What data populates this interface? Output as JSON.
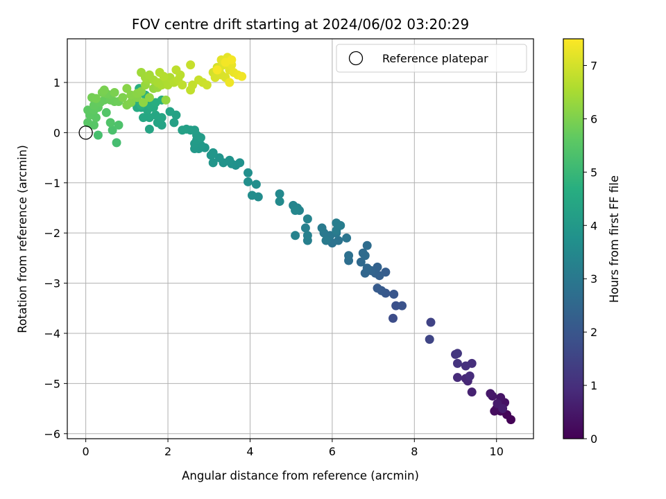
{
  "chart_data": {
    "type": "scatter",
    "title": "FOV centre drift starting at 2024/06/02 03:20:29",
    "xlabel": "Angular distance from reference (arcmin)",
    "ylabel": "Rotation from reference (arcmin)",
    "xlim": [
      -0.45,
      10.9
    ],
    "ylim": [
      -6.1,
      1.87
    ],
    "xticks": [
      0,
      2,
      4,
      6,
      8,
      10
    ],
    "yticks": [
      -6,
      -5,
      -4,
      -3,
      -2,
      -1,
      0,
      1
    ],
    "grid": true,
    "colormap": "viridis",
    "colorbar": {
      "label": "Hours from first FF file",
      "range": [
        0,
        7.5
      ],
      "ticks": [
        0,
        1,
        2,
        3,
        4,
        5,
        6,
        7
      ]
    },
    "legend": {
      "position": "top-right",
      "entries": [
        {
          "label": "Reference platepar",
          "marker": "open-circle"
        }
      ]
    },
    "reference_point": {
      "x": 0,
      "y": 0
    },
    "points": [
      [
        10.35,
        -5.72,
        0.05
      ],
      [
        10.25,
        -5.62,
        0.1
      ],
      [
        10.1,
        -5.55,
        0.15
      ],
      [
        10.0,
        -5.5,
        0.2
      ],
      [
        9.95,
        -5.55,
        0.25
      ],
      [
        10.05,
        -5.45,
        0.3
      ],
      [
        10.2,
        -5.38,
        0.35
      ],
      [
        10.1,
        -5.28,
        0.4
      ],
      [
        9.9,
        -5.25,
        0.45
      ],
      [
        9.85,
        -5.2,
        0.5
      ],
      [
        10.02,
        -5.4,
        0.55
      ],
      [
        10.15,
        -5.5,
        0.6
      ],
      [
        9.4,
        -5.17,
        0.7
      ],
      [
        9.3,
        -4.95,
        0.8
      ],
      [
        9.25,
        -4.9,
        0.85
      ],
      [
        9.05,
        -4.88,
        0.9
      ],
      [
        9.35,
        -4.85,
        0.95
      ],
      [
        9.4,
        -4.6,
        1.0
      ],
      [
        9.25,
        -4.65,
        1.05
      ],
      [
        9.05,
        -4.6,
        1.1
      ],
      [
        9.0,
        -4.42,
        1.15
      ],
      [
        9.05,
        -4.4,
        1.2
      ],
      [
        8.4,
        -3.78,
        1.5
      ],
      [
        8.37,
        -4.12,
        1.55
      ],
      [
        7.48,
        -3.7,
        1.75
      ],
      [
        7.55,
        -3.45,
        1.85
      ],
      [
        7.7,
        -3.45,
        1.9
      ],
      [
        7.5,
        -3.22,
        2.0
      ],
      [
        7.3,
        -3.2,
        2.05
      ],
      [
        7.2,
        -3.15,
        2.1
      ],
      [
        7.1,
        -3.1,
        2.15
      ],
      [
        7.3,
        -2.78,
        2.2
      ],
      [
        7.15,
        -2.85,
        2.25
      ],
      [
        7.05,
        -2.8,
        2.3
      ],
      [
        7.1,
        -2.68,
        2.35
      ],
      [
        6.95,
        -2.75,
        2.4
      ],
      [
        6.8,
        -2.8,
        2.45
      ],
      [
        6.85,
        -2.7,
        2.5
      ],
      [
        6.7,
        -2.58,
        2.55
      ],
      [
        6.8,
        -2.45,
        2.6
      ],
      [
        6.75,
        -2.4,
        2.6
      ],
      [
        6.85,
        -2.25,
        2.65
      ],
      [
        6.4,
        -2.55,
        2.7
      ],
      [
        6.4,
        -2.45,
        2.75
      ],
      [
        6.0,
        -2.2,
        2.8
      ],
      [
        6.15,
        -2.15,
        2.85
      ],
      [
        6.35,
        -2.1,
        2.9
      ],
      [
        6.1,
        -2.0,
        2.95
      ],
      [
        5.95,
        -2.05,
        2.95
      ],
      [
        5.8,
        -2.0,
        3.0
      ],
      [
        5.75,
        -1.9,
        3.05
      ],
      [
        5.85,
        -2.15,
        3.05
      ],
      [
        6.1,
        -1.95,
        3.1
      ],
      [
        6.1,
        -1.8,
        3.15
      ],
      [
        6.2,
        -1.85,
        3.15
      ],
      [
        5.4,
        -2.15,
        3.2
      ],
      [
        5.4,
        -2.05,
        3.25
      ],
      [
        5.35,
        -1.9,
        3.25
      ],
      [
        5.1,
        -2.05,
        3.3
      ],
      [
        5.4,
        -1.72,
        3.35
      ],
      [
        5.2,
        -1.55,
        3.35
      ],
      [
        5.15,
        -1.5,
        3.4
      ],
      [
        5.05,
        -1.45,
        3.4
      ],
      [
        5.1,
        -1.55,
        3.45
      ],
      [
        4.72,
        -1.22,
        3.5
      ],
      [
        4.72,
        -1.37,
        3.55
      ],
      [
        4.2,
        -1.28,
        3.6
      ],
      [
        4.05,
        -1.25,
        3.62
      ],
      [
        4.15,
        -1.03,
        3.65
      ],
      [
        3.95,
        -0.98,
        3.68
      ],
      [
        3.95,
        -0.8,
        3.7
      ],
      [
        3.65,
        -0.65,
        3.72
      ],
      [
        3.75,
        -0.6,
        3.75
      ],
      [
        3.55,
        -0.62,
        3.77
      ],
      [
        3.5,
        -0.55,
        3.8
      ],
      [
        3.35,
        -0.6,
        3.82
      ],
      [
        3.25,
        -0.5,
        3.85
      ],
      [
        3.1,
        -0.6,
        3.87
      ],
      [
        3.05,
        -0.45,
        3.9
      ],
      [
        3.1,
        -0.4,
        3.92
      ],
      [
        2.9,
        -0.3,
        3.95
      ],
      [
        2.75,
        -0.32,
        3.97
      ],
      [
        2.8,
        -0.25,
        4.0
      ],
      [
        2.65,
        -0.32,
        4.02
      ],
      [
        2.65,
        -0.22,
        4.05
      ],
      [
        2.7,
        -0.15,
        4.07
      ],
      [
        2.8,
        -0.1,
        4.1
      ],
      [
        2.7,
        -0.05,
        4.12
      ],
      [
        2.65,
        0.05,
        4.15
      ],
      [
        2.55,
        0.05,
        4.17
      ],
      [
        2.45,
        0.07,
        4.2
      ],
      [
        2.35,
        0.05,
        4.22
      ],
      [
        2.15,
        0.2,
        4.25
      ],
      [
        2.2,
        0.35,
        4.28
      ],
      [
        2.05,
        0.42,
        4.3
      ],
      [
        1.85,
        0.15,
        4.32
      ],
      [
        1.75,
        0.2,
        4.35
      ],
      [
        1.55,
        0.07,
        4.37
      ],
      [
        1.85,
        0.3,
        4.4
      ],
      [
        1.7,
        0.35,
        4.42
      ],
      [
        1.55,
        0.3,
        4.45
      ],
      [
        1.4,
        0.3,
        4.47
      ],
      [
        1.5,
        0.45,
        4.5
      ],
      [
        1.35,
        0.5,
        4.52
      ],
      [
        1.25,
        0.5,
        4.55
      ],
      [
        1.6,
        0.6,
        4.57
      ],
      [
        1.65,
        0.5,
        4.6
      ],
      [
        1.55,
        0.55,
        4.62
      ],
      [
        1.7,
        0.6,
        4.65
      ],
      [
        1.85,
        0.65,
        4.67
      ],
      [
        1.3,
        0.88,
        4.7
      ],
      [
        1.2,
        0.65,
        4.72
      ],
      [
        1.35,
        0.55,
        4.75
      ],
      [
        1.45,
        0.75,
        4.77
      ],
      [
        0.75,
        -0.2,
        5.2
      ],
      [
        0.3,
        -0.05,
        5.25
      ],
      [
        0.65,
        0.05,
        5.3
      ],
      [
        0.8,
        0.15,
        5.35
      ],
      [
        0.6,
        0.2,
        5.4
      ],
      [
        0.5,
        0.4,
        5.45
      ],
      [
        0.2,
        0.15,
        5.5
      ],
      [
        0.05,
        0.2,
        5.52
      ],
      [
        0.25,
        0.3,
        5.55
      ],
      [
        0.1,
        0.35,
        5.58
      ],
      [
        0.05,
        0.45,
        5.6
      ],
      [
        0.2,
        0.45,
        5.62
      ],
      [
        0.3,
        0.5,
        5.65
      ],
      [
        0.2,
        0.55,
        5.68
      ],
      [
        0.35,
        0.6,
        5.7
      ],
      [
        0.45,
        0.65,
        5.72
      ],
      [
        0.6,
        0.65,
        5.75
      ],
      [
        0.7,
        0.62,
        5.78
      ],
      [
        0.8,
        0.62,
        5.8
      ],
      [
        0.6,
        0.75,
        5.82
      ],
      [
        0.5,
        0.78,
        5.85
      ],
      [
        0.15,
        0.7,
        5.88
      ],
      [
        0.25,
        0.68,
        5.9
      ],
      [
        0.4,
        0.8,
        5.92
      ],
      [
        0.45,
        0.85,
        5.95
      ],
      [
        0.7,
        0.8,
        5.97
      ],
      [
        0.9,
        0.7,
        6.0
      ],
      [
        1.0,
        0.55,
        6.02
      ],
      [
        1.1,
        0.6,
        6.05
      ],
      [
        1.25,
        0.7,
        6.08
      ],
      [
        1.1,
        0.75,
        6.1
      ],
      [
        1.0,
        0.88,
        6.12
      ],
      [
        1.25,
        0.78,
        6.15
      ],
      [
        1.35,
        0.82,
        6.17
      ],
      [
        1.4,
        0.6,
        6.2
      ],
      [
        1.55,
        0.7,
        6.22
      ],
      [
        1.95,
        0.65,
        6.25
      ],
      [
        1.65,
        0.88,
        6.27
      ],
      [
        1.45,
        0.95,
        6.3
      ],
      [
        1.75,
        0.9,
        6.32
      ],
      [
        1.8,
        0.95,
        6.35
      ],
      [
        1.5,
        1.05,
        6.37
      ],
      [
        1.35,
        1.2,
        6.4
      ],
      [
        1.45,
        1.1,
        6.42
      ],
      [
        1.55,
        1.15,
        6.45
      ],
      [
        1.65,
        1.05,
        6.47
      ],
      [
        1.75,
        1.0,
        6.5
      ],
      [
        1.85,
        0.95,
        6.52
      ],
      [
        1.95,
        1.05,
        6.55
      ],
      [
        2.0,
        0.95,
        6.57
      ],
      [
        2.05,
        1.1,
        6.6
      ],
      [
        1.8,
        1.2,
        6.62
      ],
      [
        1.9,
        1.12,
        6.65
      ],
      [
        2.15,
        1.0,
        6.67
      ],
      [
        2.25,
        1.05,
        6.7
      ],
      [
        2.3,
        1.15,
        6.72
      ],
      [
        2.2,
        1.25,
        6.75
      ],
      [
        2.35,
        0.95,
        6.77
      ],
      [
        2.55,
        0.85,
        6.8
      ],
      [
        2.6,
        0.95,
        6.82
      ],
      [
        2.55,
        1.35,
        6.85
      ],
      [
        2.75,
        1.05,
        6.87
      ],
      [
        2.85,
        1.0,
        6.9
      ],
      [
        2.95,
        0.95,
        6.92
      ],
      [
        3.1,
        1.2,
        7.0
      ],
      [
        3.2,
        1.3,
        7.02
      ],
      [
        3.15,
        1.1,
        7.05
      ],
      [
        3.3,
        1.15,
        7.08
      ],
      [
        3.4,
        1.1,
        7.1
      ],
      [
        3.25,
        1.25,
        7.12
      ],
      [
        3.35,
        1.35,
        7.15
      ],
      [
        3.5,
        1.25,
        7.18
      ],
      [
        3.3,
        1.45,
        7.2
      ],
      [
        3.45,
        1.5,
        7.22
      ],
      [
        3.55,
        1.35,
        7.25
      ],
      [
        3.6,
        1.2,
        7.28
      ],
      [
        3.7,
        1.15,
        7.3
      ],
      [
        3.5,
        1.0,
        7.32
      ],
      [
        3.8,
        1.12,
        7.35
      ],
      [
        3.4,
        1.4,
        7.38
      ],
      [
        3.55,
        1.45,
        7.4
      ],
      [
        3.2,
        1.25,
        7.42
      ]
    ]
  }
}
